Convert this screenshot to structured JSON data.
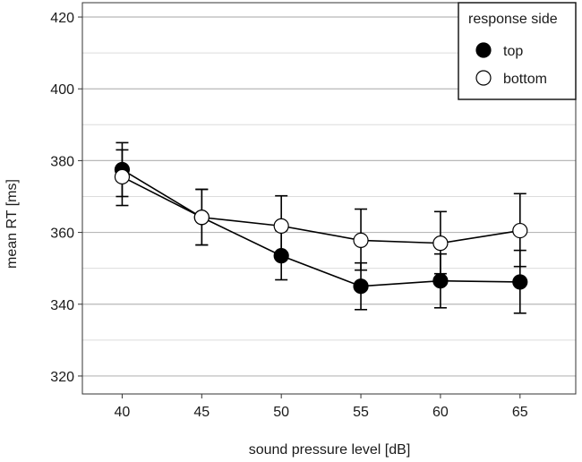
{
  "chart_data": {
    "type": "line",
    "title": "",
    "xlabel": "sound pressure level [dB]",
    "ylabel": "mean RT [ms]",
    "x": [
      40,
      45,
      50,
      55,
      60,
      65
    ],
    "xticks": [
      "40",
      "45",
      "50",
      "55",
      "60",
      "65"
    ],
    "yticks": [
      "320",
      "340",
      "360",
      "380",
      "400",
      "420"
    ],
    "ylim": [
      315,
      424
    ],
    "grid": true,
    "legend": {
      "title": "response side",
      "position": "top-right"
    },
    "series": [
      {
        "name": "top",
        "marker": "filled",
        "color": "#000000",
        "values": [
          377.5,
          364.2,
          353.5,
          345.0,
          346.5,
          346.2
        ],
        "err_low": [
          370.0,
          356.5,
          346.8,
          338.5,
          339.0,
          337.5
        ],
        "err_high": [
          385.0,
          372.0,
          360.5,
          351.5,
          354.0,
          355.0
        ]
      },
      {
        "name": "bottom",
        "marker": "open",
        "color": "#000000",
        "values": [
          375.5,
          364.2,
          361.8,
          357.8,
          357.0,
          360.5
        ],
        "err_low": [
          367.5,
          356.5,
          353.5,
          349.5,
          348.5,
          350.5
        ],
        "err_high": [
          383.0,
          372.0,
          370.2,
          366.5,
          365.8,
          370.8
        ]
      }
    ]
  }
}
